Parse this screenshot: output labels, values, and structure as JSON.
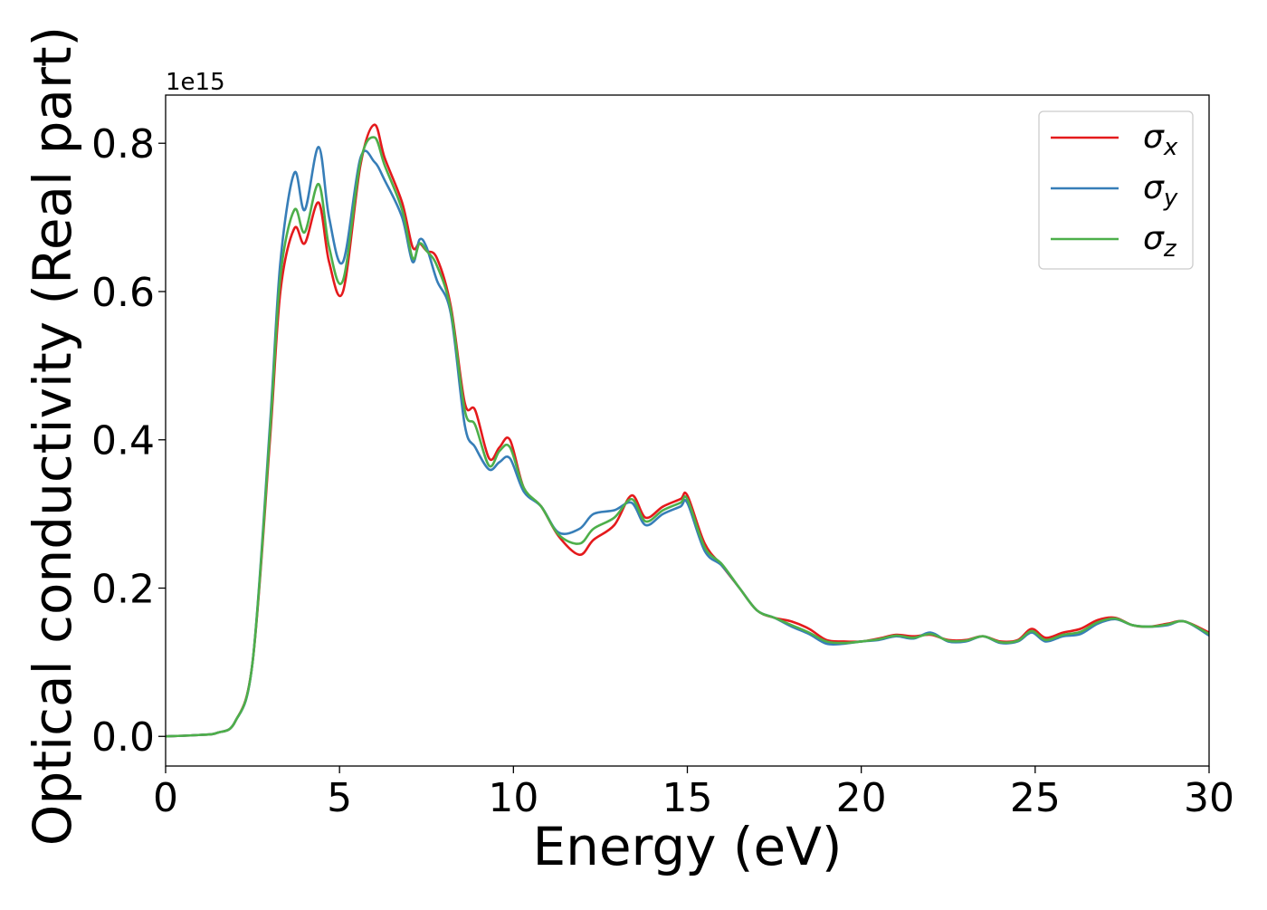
{
  "chart_data": {
    "type": "line",
    "title": "",
    "xlabel": "Energy (eV)",
    "ylabel": "Optical conductivity (Real part)",
    "y_offset_text": "1e15",
    "xlim": [
      0,
      30
    ],
    "ylim": [
      -0.04,
      0.865
    ],
    "x_ticks": [
      0,
      5,
      10,
      15,
      20,
      25,
      30
    ],
    "x_tick_labels": [
      "0",
      "5",
      "10",
      "15",
      "20",
      "25",
      "30"
    ],
    "y_ticks": [
      0.0,
      0.2,
      0.4,
      0.6,
      0.8
    ],
    "y_tick_labels": [
      "0.0",
      "0.2",
      "0.4",
      "0.6",
      "0.8"
    ],
    "grid": false,
    "legend_position": "top-right",
    "series": [
      {
        "name": "σx",
        "symbol": "σ",
        "subscript": "x",
        "color": "#e41a1c",
        "x": [
          0,
          1,
          1.5,
          2,
          2.5,
          3,
          3.3,
          3.7,
          4.0,
          4.4,
          4.7,
          5.1,
          5.6,
          6.0,
          6.3,
          6.8,
          7.1,
          7.3,
          7.5,
          7.8,
          8.2,
          8.6,
          8.9,
          9.3,
          9.6,
          9.9,
          10.3,
          10.8,
          11.3,
          11.9,
          12.3,
          12.9,
          13.4,
          13.8,
          14.3,
          14.8,
          15.0,
          15.5,
          16.0,
          16.5,
          17.0,
          17.5,
          18.0,
          18.5,
          19.0,
          19.5,
          20.0,
          20.5,
          21.0,
          21.5,
          22.0,
          22.5,
          23.0,
          23.5,
          24.0,
          24.5,
          24.9,
          25.3,
          25.8,
          26.3,
          26.8,
          27.3,
          27.8,
          28.3,
          28.8,
          29.3,
          30.0
        ],
        "y": [
          0,
          0.002,
          0.005,
          0.02,
          0.1,
          0.4,
          0.6,
          0.685,
          0.665,
          0.72,
          0.64,
          0.6,
          0.77,
          0.825,
          0.78,
          0.72,
          0.66,
          0.665,
          0.655,
          0.645,
          0.58,
          0.45,
          0.44,
          0.375,
          0.39,
          0.4,
          0.335,
          0.31,
          0.27,
          0.245,
          0.265,
          0.285,
          0.325,
          0.295,
          0.31,
          0.32,
          0.325,
          0.26,
          0.23,
          0.2,
          0.17,
          0.16,
          0.155,
          0.145,
          0.13,
          0.128,
          0.128,
          0.132,
          0.137,
          0.135,
          0.137,
          0.13,
          0.13,
          0.135,
          0.128,
          0.13,
          0.145,
          0.133,
          0.14,
          0.145,
          0.157,
          0.16,
          0.15,
          0.148,
          0.152,
          0.155,
          0.14
        ]
      },
      {
        "name": "σy",
        "symbol": "σ",
        "subscript": "y",
        "color": "#377eb8",
        "x": [
          0,
          1,
          1.5,
          2,
          2.5,
          3,
          3.3,
          3.7,
          4.0,
          4.4,
          4.7,
          5.1,
          5.6,
          6.0,
          6.3,
          6.8,
          7.1,
          7.3,
          7.5,
          7.8,
          8.2,
          8.6,
          8.9,
          9.3,
          9.6,
          9.9,
          10.3,
          10.8,
          11.3,
          11.9,
          12.3,
          12.9,
          13.4,
          13.8,
          14.3,
          14.8,
          15.0,
          15.5,
          16.0,
          16.5,
          17.0,
          17.5,
          18.0,
          18.5,
          19.0,
          19.5,
          20.0,
          20.5,
          21.0,
          21.5,
          22.0,
          22.5,
          23.0,
          23.5,
          24.0,
          24.5,
          24.9,
          25.3,
          25.8,
          26.3,
          26.8,
          27.3,
          27.8,
          28.3,
          28.8,
          29.3,
          30.0
        ],
        "y": [
          0,
          0.002,
          0.005,
          0.02,
          0.1,
          0.42,
          0.64,
          0.76,
          0.71,
          0.795,
          0.7,
          0.64,
          0.78,
          0.775,
          0.75,
          0.7,
          0.64,
          0.67,
          0.66,
          0.615,
          0.57,
          0.42,
          0.39,
          0.36,
          0.37,
          0.375,
          0.33,
          0.31,
          0.275,
          0.28,
          0.3,
          0.305,
          0.315,
          0.285,
          0.3,
          0.31,
          0.315,
          0.25,
          0.23,
          0.2,
          0.17,
          0.16,
          0.148,
          0.138,
          0.125,
          0.125,
          0.128,
          0.13,
          0.135,
          0.132,
          0.14,
          0.128,
          0.128,
          0.135,
          0.126,
          0.128,
          0.14,
          0.128,
          0.135,
          0.138,
          0.152,
          0.158,
          0.15,
          0.148,
          0.15,
          0.155,
          0.136
        ]
      },
      {
        "name": "σz",
        "symbol": "σ",
        "subscript": "z",
        "color": "#4daf4a",
        "x": [
          0,
          1,
          1.5,
          2,
          2.5,
          3,
          3.3,
          3.7,
          4.0,
          4.4,
          4.7,
          5.1,
          5.6,
          6.0,
          6.3,
          6.8,
          7.1,
          7.3,
          7.5,
          7.8,
          8.2,
          8.6,
          8.9,
          9.3,
          9.6,
          9.9,
          10.3,
          10.8,
          11.3,
          11.9,
          12.3,
          12.9,
          13.4,
          13.8,
          14.3,
          14.8,
          15.0,
          15.5,
          16.0,
          16.5,
          17.0,
          17.5,
          18.0,
          18.5,
          19.0,
          19.5,
          20.0,
          20.5,
          21.0,
          21.5,
          22.0,
          22.5,
          23.0,
          23.5,
          24.0,
          24.5,
          24.9,
          25.3,
          25.8,
          26.3,
          26.8,
          27.3,
          27.8,
          28.3,
          28.8,
          29.3,
          30.0
        ],
        "y": [
          0,
          0.002,
          0.005,
          0.02,
          0.1,
          0.41,
          0.62,
          0.71,
          0.68,
          0.745,
          0.66,
          0.615,
          0.775,
          0.808,
          0.77,
          0.71,
          0.645,
          0.665,
          0.655,
          0.635,
          0.575,
          0.44,
          0.42,
          0.365,
          0.385,
          0.39,
          0.335,
          0.31,
          0.272,
          0.26,
          0.28,
          0.295,
          0.32,
          0.29,
          0.305,
          0.315,
          0.32,
          0.255,
          0.232,
          0.2,
          0.17,
          0.16,
          0.15,
          0.14,
          0.128,
          0.126,
          0.128,
          0.131,
          0.136,
          0.133,
          0.138,
          0.129,
          0.129,
          0.135,
          0.127,
          0.129,
          0.142,
          0.13,
          0.137,
          0.141,
          0.154,
          0.159,
          0.15,
          0.148,
          0.151,
          0.155,
          0.138
        ]
      }
    ]
  }
}
